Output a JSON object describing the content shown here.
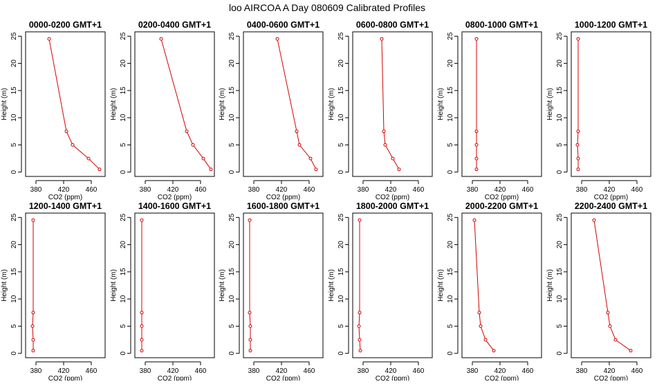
{
  "figure": {
    "title": "loo AIRCOA A  Day 080609  Calibrated Profiles"
  },
  "chart_data": [
    {
      "type": "line",
      "title": "0000-0200 GMT+1",
      "xlabel": "CO2 (ppm)",
      "ylabel": "Height (m)",
      "xlim": [
        365,
        480
      ],
      "ylim": [
        0,
        25
      ],
      "xticks": [
        380,
        420,
        460
      ],
      "yticks": [
        0,
        5,
        10,
        15,
        20,
        25
      ],
      "series": [
        {
          "color": "#d40000",
          "x": [
            399,
            424,
            433,
            456,
            472
          ],
          "y": [
            24.5,
            7.5,
            5,
            2.5,
            0.5
          ]
        }
      ]
    },
    {
      "type": "line",
      "title": "0200-0400 GMT+1",
      "xlabel": "CO2 (ppm)",
      "ylabel": "Height (m)",
      "xlim": [
        365,
        480
      ],
      "ylim": [
        0,
        25
      ],
      "xticks": [
        380,
        420,
        460
      ],
      "yticks": [
        0,
        5,
        10,
        15,
        20,
        25
      ],
      "series": [
        {
          "color": "#d40000",
          "x": [
            403,
            440,
            449,
            464,
            475
          ],
          "y": [
            24.5,
            7.5,
            5,
            2.5,
            0.5
          ]
        }
      ]
    },
    {
      "type": "line",
      "title": "0400-0600 GMT+1",
      "xlabel": "CO2 (ppm)",
      "ylabel": "Height (m)",
      "xlim": [
        365,
        480
      ],
      "ylim": [
        0,
        25
      ],
      "xticks": [
        380,
        420,
        460
      ],
      "yticks": [
        0,
        5,
        10,
        15,
        20,
        25
      ],
      "series": [
        {
          "color": "#d40000",
          "x": [
            414,
            442,
            446,
            462,
            470
          ],
          "y": [
            24.5,
            7.5,
            5,
            2.5,
            0.5
          ]
        }
      ]
    },
    {
      "type": "line",
      "title": "0600-0800 GMT+1",
      "xlabel": "CO2 (ppm)",
      "ylabel": "Height (m)",
      "xlim": [
        365,
        480
      ],
      "ylim": [
        0,
        25
      ],
      "xticks": [
        380,
        420,
        460
      ],
      "yticks": [
        0,
        5,
        10,
        15,
        20,
        25
      ],
      "series": [
        {
          "color": "#d40000",
          "x": [
            407,
            410,
            412,
            423,
            432
          ],
          "y": [
            24.5,
            7.5,
            5,
            2.5,
            0.5
          ]
        }
      ]
    },
    {
      "type": "line",
      "title": "0800-1000 GMT+1",
      "xlabel": "CO2 (ppm)",
      "ylabel": "Height (m)",
      "xlim": [
        365,
        480
      ],
      "ylim": [
        0,
        25
      ],
      "xticks": [
        380,
        420,
        460
      ],
      "yticks": [
        0,
        5,
        10,
        15,
        20,
        25
      ],
      "series": [
        {
          "color": "#d40000",
          "x": [
            386,
            386,
            386,
            386,
            386
          ],
          "y": [
            24.5,
            7.5,
            5,
            2.5,
            0.5
          ]
        }
      ]
    },
    {
      "type": "line",
      "title": "1000-1200 GMT+1",
      "xlabel": "CO2 (ppm)",
      "ylabel": "Height (m)",
      "xlim": [
        365,
        480
      ],
      "ylim": [
        0,
        25
      ],
      "xticks": [
        380,
        420,
        460
      ],
      "yticks": [
        0,
        5,
        10,
        15,
        20,
        25
      ],
      "series": [
        {
          "color": "#d40000",
          "x": [
            375,
            375,
            374,
            375,
            375
          ],
          "y": [
            24.5,
            7.5,
            5,
            2.5,
            0.5
          ]
        }
      ]
    },
    {
      "type": "line",
      "title": "1200-1400 GMT+1",
      "xlabel": "CO2 (ppm)",
      "ylabel": "Height (m)",
      "xlim": [
        365,
        480
      ],
      "ylim": [
        0,
        25
      ],
      "xticks": [
        380,
        420,
        460
      ],
      "yticks": [
        0,
        5,
        10,
        15,
        20,
        25
      ],
      "series": [
        {
          "color": "#d40000",
          "x": [
            376,
            376,
            375,
            376,
            376
          ],
          "y": [
            24.5,
            7.5,
            5,
            2.5,
            0.5
          ]
        }
      ]
    },
    {
      "type": "line",
      "title": "1400-1600 GMT+1",
      "xlabel": "CO2 (ppm)",
      "ylabel": "Height (m)",
      "xlim": [
        365,
        480
      ],
      "ylim": [
        0,
        25
      ],
      "xticks": [
        380,
        420,
        460
      ],
      "yticks": [
        0,
        5,
        10,
        15,
        20,
        25
      ],
      "series": [
        {
          "color": "#d40000",
          "x": [
            375,
            375,
            375,
            375,
            375
          ],
          "y": [
            24.5,
            7.5,
            5,
            2.5,
            0.5
          ]
        }
      ]
    },
    {
      "type": "line",
      "title": "1600-1800 GMT+1",
      "xlabel": "CO2 (ppm)",
      "ylabel": "Height (m)",
      "xlim": [
        365,
        480
      ],
      "ylim": [
        0,
        25
      ],
      "xticks": [
        380,
        420,
        460
      ],
      "yticks": [
        0,
        5,
        10,
        15,
        20,
        25
      ],
      "series": [
        {
          "color": "#d40000",
          "x": [
            374,
            374,
            375,
            375,
            375
          ],
          "y": [
            24.5,
            7.5,
            5,
            2.5,
            0.5
          ]
        }
      ]
    },
    {
      "type": "line",
      "title": "1800-2000 GMT+1",
      "xlabel": "CO2 (ppm)",
      "ylabel": "Height (m)",
      "xlim": [
        365,
        480
      ],
      "ylim": [
        0,
        25
      ],
      "xticks": [
        380,
        420,
        460
      ],
      "yticks": [
        0,
        5,
        10,
        15,
        20,
        25
      ],
      "series": [
        {
          "color": "#d40000",
          "x": [
            375,
            375,
            374,
            375,
            376
          ],
          "y": [
            24.5,
            7.5,
            5,
            2.5,
            0.5
          ]
        }
      ]
    },
    {
      "type": "line",
      "title": "2000-2200 GMT+1",
      "xlabel": "CO2 (ppm)",
      "ylabel": "Height (m)",
      "xlim": [
        365,
        480
      ],
      "ylim": [
        0,
        25
      ],
      "xticks": [
        380,
        420,
        460
      ],
      "yticks": [
        0,
        5,
        10,
        15,
        20,
        25
      ],
      "series": [
        {
          "color": "#d40000",
          "x": [
            383,
            390,
            392,
            399,
            411
          ],
          "y": [
            24.5,
            7.5,
            5,
            2.5,
            0.5
          ]
        }
      ]
    },
    {
      "type": "line",
      "title": "2200-2400 GMT+1",
      "xlabel": "CO2 (ppm)",
      "ylabel": "Height (m)",
      "xlim": [
        365,
        480
      ],
      "ylim": [
        0,
        25
      ],
      "xticks": [
        380,
        420,
        460
      ],
      "yticks": [
        0,
        5,
        10,
        15,
        20,
        25
      ],
      "series": [
        {
          "color": "#d40000",
          "x": [
            398,
            418,
            421,
            429,
            451
          ],
          "y": [
            24.5,
            7.5,
            5,
            2.5,
            0.5
          ]
        }
      ]
    }
  ]
}
